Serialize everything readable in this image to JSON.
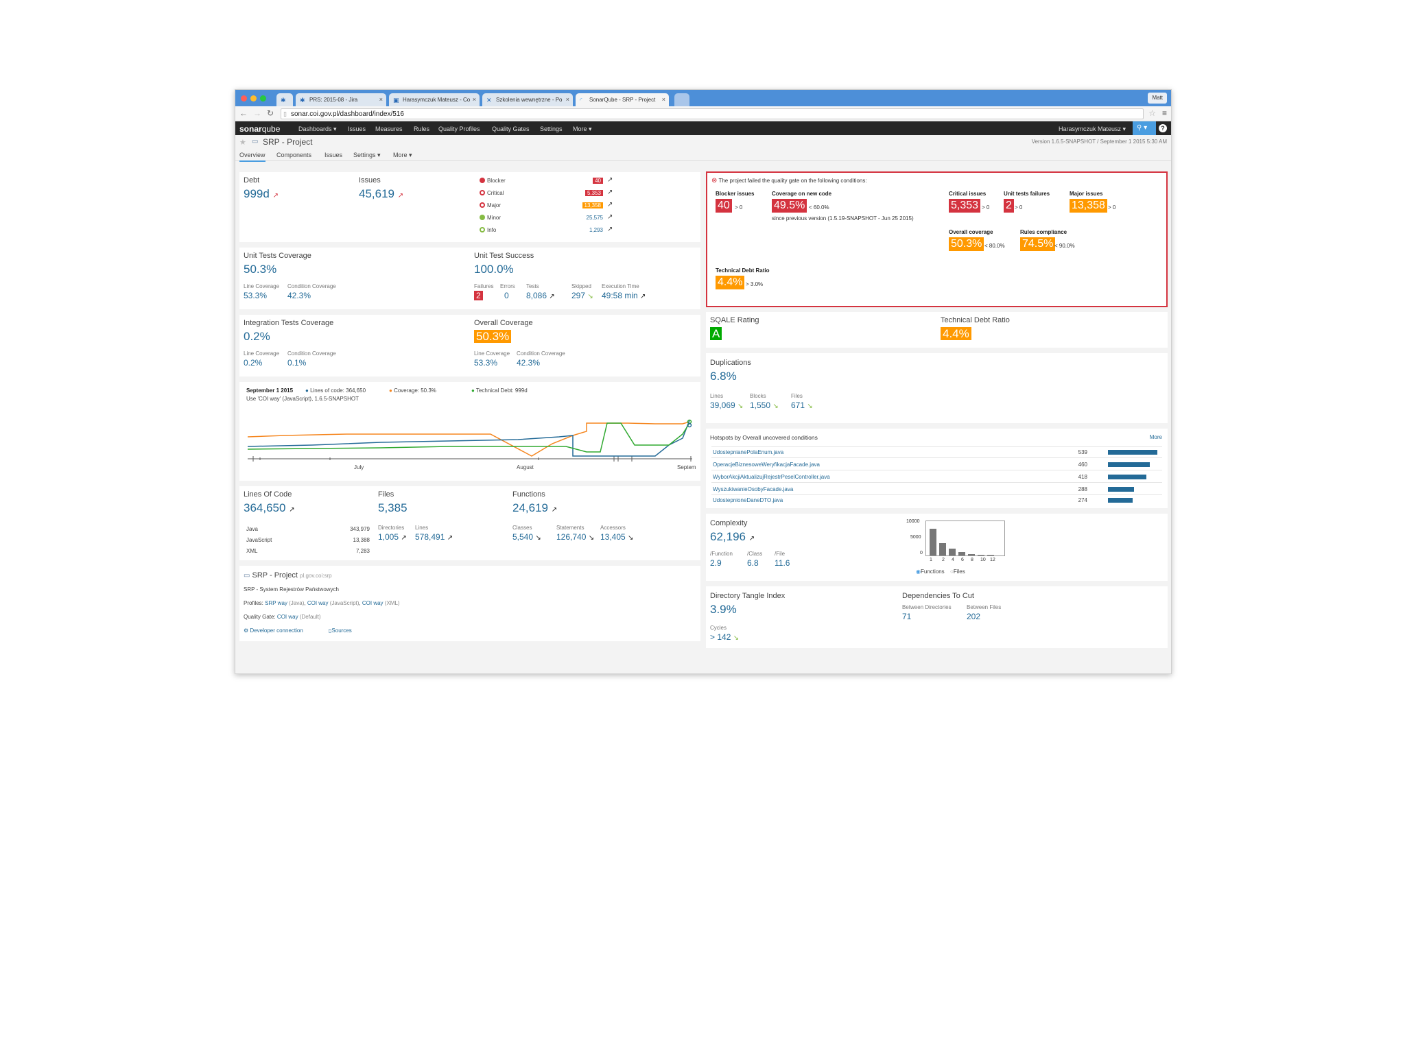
{
  "browser": {
    "tabs": [
      {
        "label": "PRS: 2015-08 - Jira"
      },
      {
        "label": "Harasymczuk Mateusz - Co"
      },
      {
        "label": "Szkolenia wewnętrzne - Po"
      },
      {
        "label": "SonarQube - SRP - Project"
      }
    ],
    "profile": "Matt",
    "url": "sonar.coi.gov.pl/dashboard/index/516"
  },
  "sonar_nav": {
    "logo_bold": "sonar",
    "logo_light": "qube",
    "items": [
      "Dashboards ▾",
      "Issues",
      "Measures",
      "Rules",
      "Quality Profiles",
      "Quality Gates",
      "Settings",
      "More ▾"
    ],
    "user": "Harasymczuk Mateusz ▾",
    "help": "?"
  },
  "project": {
    "title": "SRP - Project",
    "version": "Version 1.6.5-SNAPSHOT / September 1 2015 5:30 AM",
    "tabs": [
      "Overview",
      "Components",
      "Issues",
      "Settings ▾",
      "More ▾"
    ]
  },
  "debt_issues": {
    "debt_label": "Debt",
    "debt_value": "999d",
    "issues_label": "Issues",
    "issues_value": "45,619",
    "severities": [
      {
        "name": "Blocker",
        "count": "40",
        "color": "#d4333f",
        "boxed": "red"
      },
      {
        "name": "Critical",
        "count": "5,353",
        "color": "#d4333f",
        "boxed": "red"
      },
      {
        "name": "Major",
        "count": "13,358",
        "color": "#d4333f",
        "boxed": "orange"
      },
      {
        "name": "Minor",
        "count": "25,575",
        "color": "#85bb43",
        "boxed": ""
      },
      {
        "name": "Info",
        "count": "1,293",
        "color": "#85bb43",
        "boxed": ""
      }
    ]
  },
  "unit_tests": {
    "coverage_label": "Unit Tests Coverage",
    "coverage_value": "50.3%",
    "line_label": "Line Coverage",
    "line_value": "53.3%",
    "cond_label": "Condition Coverage",
    "cond_value": "42.3%",
    "success_label": "Unit Test Success",
    "success_value": "100.0%",
    "failures_label": "Failures",
    "failures_value": "2",
    "errors_label": "Errors",
    "errors_value": "0",
    "tests_label": "Tests",
    "tests_value": "8,086",
    "skipped_label": "Skipped",
    "skipped_value": "297",
    "exec_label": "Execution Time",
    "exec_value": "49:58 min"
  },
  "integration": {
    "label": "Integration Tests Coverage",
    "value": "0.2%",
    "line_label": "Line Coverage",
    "line_value": "0.2%",
    "cond_label": "Condition Coverage",
    "cond_value": "0.1%",
    "overall_label": "Overall Coverage",
    "overall_value": "50.3%",
    "oline_label": "Line Coverage",
    "oline_value": "53.3%",
    "ocond_label": "Condition Coverage",
    "ocond_value": "42.3%"
  },
  "timeline": {
    "date": "September 1 2015",
    "subtitle": "Use 'COI way' (JavaScript), 1.6.5-SNAPSHOT",
    "legend": [
      {
        "label": "Lines of code: 364,650",
        "color": "#236a97"
      },
      {
        "label": "Coverage: 50.3%",
        "color": "#f5861f"
      },
      {
        "label": "Technical Debt: 999d",
        "color": "#2fa82f"
      }
    ],
    "xlabels": [
      "July",
      "August",
      "Septem"
    ]
  },
  "size": {
    "loc_label": "Lines Of Code",
    "loc_value": "364,650",
    "languages": [
      {
        "name": "Java",
        "value": "343,979"
      },
      {
        "name": "JavaScript",
        "value": "13,388"
      },
      {
        "name": "XML",
        "value": "7,283"
      }
    ],
    "files_label": "Files",
    "files_value": "5,385",
    "dirs_label": "Directories",
    "dirs_value": "1,005",
    "lines_label": "Lines",
    "lines_value": "578,491",
    "func_label": "Functions",
    "func_value": "24,619",
    "classes_label": "Classes",
    "classes_value": "5,540",
    "statements_label": "Statements",
    "statements_value": "126,740",
    "accessors_label": "Accessors",
    "accessors_value": "13,405"
  },
  "project_info": {
    "title": "SRP - Project",
    "key": "pl.gov.coi:srp",
    "description": "SRP - System Rejestrów Państwowych",
    "profiles_label": "Profiles:",
    "profile_1": "SRP way",
    "profile_1_lang": "(Java)",
    "profile_2": "COI way",
    "profile_2_lang": "(JavaScript)",
    "profile_3": "COI way",
    "profile_3_lang": "(XML)",
    "gate_label": "Quality Gate:",
    "gate_value": "COI way",
    "gate_default": "(Default)",
    "dev_link": "Developer connection",
    "sources_link": "Sources"
  },
  "quality_gate": {
    "message": "The project failed the quality gate on the following conditions:",
    "conditions": [
      {
        "label": "Blocker issues",
        "value": "40",
        "threshold": "> 0",
        "color": "red"
      },
      {
        "label": "Coverage on new code",
        "value": "49.5%",
        "threshold": "< 60.0%",
        "color": "red"
      },
      {
        "label": "Critical issues",
        "value": "5,353",
        "threshold": "> 0",
        "color": "red"
      },
      {
        "label": "Unit tests failures",
        "value": "2",
        "threshold": "> 0",
        "color": "red"
      },
      {
        "label": "Major issues",
        "value": "13,358",
        "threshold": "> 0",
        "color": "orange"
      },
      {
        "label": "Overall coverage",
        "value": "50.3%",
        "threshold": "< 80.0%",
        "color": "orange"
      },
      {
        "label": "Rules compliance",
        "value": "74.5%",
        "threshold": "< 90.0%",
        "color": "orange"
      },
      {
        "label": "Technical Debt Ratio",
        "value": "4.4%",
        "threshold": "> 3.0%",
        "color": "orange"
      }
    ],
    "since": "since previous version (1.5.19-SNAPSHOT - Jun 25 2015)"
  },
  "sqale": {
    "rating_label": "SQALE Rating",
    "rating_value": "A",
    "ratio_label": "Technical Debt Ratio",
    "ratio_value": "4.4%"
  },
  "duplications": {
    "label": "Duplications",
    "value": "6.8%",
    "lines_label": "Lines",
    "lines_value": "39,069",
    "blocks_label": "Blocks",
    "blocks_value": "1,550",
    "files_label": "Files",
    "files_value": "671"
  },
  "hotspots": {
    "title": "Hotspots by Overall uncovered conditions",
    "more": "More",
    "rows": [
      {
        "name": "UdostepnianePolaEnum.java",
        "value": 539
      },
      {
        "name": "OperacjeBiznesoweWeryfikacjaFacade.java",
        "value": 460
      },
      {
        "name": "WyborAkcjiAktualizujRejestrPeselController.java",
        "value": 418
      },
      {
        "name": "WyszukiwanieOsobyFacade.java",
        "value": 288
      },
      {
        "name": "UdostepnioneDaneDTO.java",
        "value": 274
      }
    ]
  },
  "complexity": {
    "label": "Complexity",
    "value": "62,196",
    "func_label": "/Function",
    "func_value": "2.9",
    "class_label": "/Class",
    "class_value": "6.8",
    "file_label": "/File",
    "file_value": "11.6",
    "chart_yticks": [
      "10000",
      "5000",
      "0"
    ],
    "chart_xticks": [
      "1",
      "2",
      "4",
      "6",
      "8",
      "10",
      "12"
    ],
    "chart_bars": [
      7800,
      3600,
      1900,
      1000,
      450,
      250,
      200
    ],
    "chart_ymax": 10000,
    "radio_functions": "Functions",
    "radio_files": "Files"
  },
  "tangle": {
    "label": "Directory Tangle Index",
    "value": "3.9%",
    "cycles_label": "Cycles",
    "cycles_value": "> 142",
    "deps_label": "Dependencies To Cut",
    "between_dirs_label": "Between Directories",
    "between_dirs_value": "71",
    "between_files_label": "Between Files",
    "between_files_value": "202"
  }
}
